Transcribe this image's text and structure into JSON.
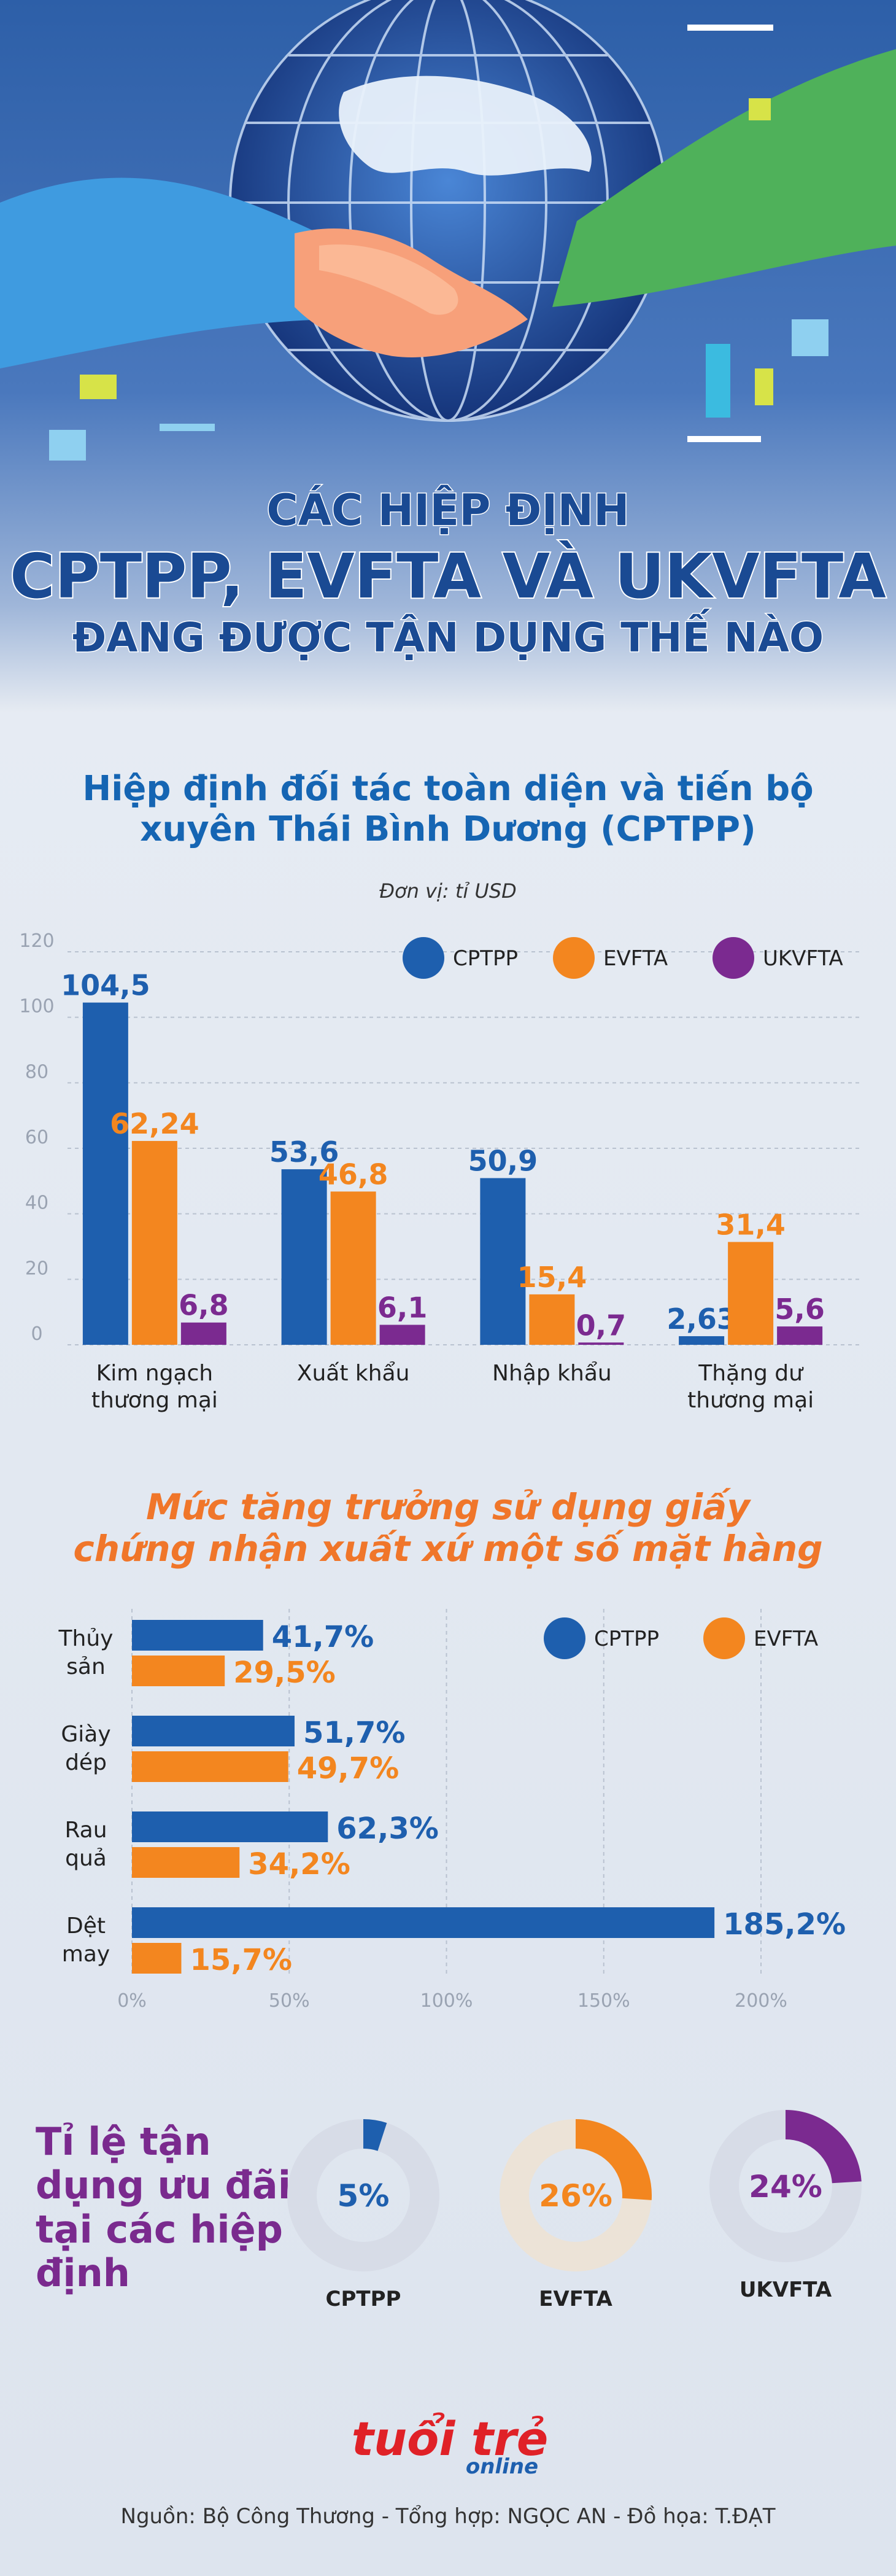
{
  "header": {
    "title_line1": "CÁC HIỆP ĐỊNH",
    "title_line2": "CPTPP, EVFTA VÀ UKVFTA",
    "title_line3": "ĐANG ĐƯỢC TẬN DỤNG THẾ NÀO"
  },
  "colors": {
    "cptpp": "#1e5fae",
    "evfta": "#f3861f",
    "ukvfta": "#7b2a90",
    "grey_ring": "#d7dce7",
    "beige_ring": "#ece3d7"
  },
  "chart_data": [
    {
      "type": "bar",
      "title_line1": "Hiệp định đối tác toàn diện và tiến bộ",
      "title_line2": "xuyên Thái Bình Dương (CPTPP)",
      "unit": "Đơn vị: tỉ USD",
      "categories": [
        [
          "Kim ngạch",
          "thương mại"
        ],
        [
          "Xuất khẩu"
        ],
        [
          "Nhập khẩu"
        ],
        [
          "Thặng dư",
          "thương mại"
        ]
      ],
      "ylim": [
        0,
        120
      ],
      "yticks": [
        "0",
        "20",
        "40",
        "60",
        "80",
        "100",
        "120"
      ],
      "grid": true,
      "legend_position": "top-right",
      "series": [
        {
          "name": "CPTPP",
          "values": [
            104.5,
            53.6,
            50.9,
            2.63
          ],
          "labels": [
            "104,5",
            "53,6",
            "50,9",
            "2,63"
          ]
        },
        {
          "name": "EVFTA",
          "values": [
            62.24,
            46.8,
            15.4,
            31.4
          ],
          "labels": [
            "62,24",
            "46,8",
            "15,4",
            "31,4"
          ]
        },
        {
          "name": "UKVFTA",
          "values": [
            6.8,
            6.1,
            0.7,
            5.6
          ],
          "labels": [
            "6,8",
            "6,1",
            "0,7",
            "5,6"
          ]
        }
      ]
    },
    {
      "type": "bar",
      "orientation": "horizontal",
      "title_line1": "Mức tăng trưởng sử dụng giấy",
      "title_line2": "chứng nhận xuất xứ một số mặt hàng",
      "categories": [
        [
          "Thủy",
          "sản"
        ],
        [
          "Giày",
          "dép"
        ],
        [
          "Rau",
          "quả"
        ],
        [
          "Dệt",
          "may"
        ]
      ],
      "xlim": [
        0,
        200
      ],
      "xticks": [
        "0%",
        "50%",
        "100%",
        "150%",
        "200%"
      ],
      "grid": true,
      "legend_position": "top-right",
      "series": [
        {
          "name": "CPTPP",
          "values": [
            41.7,
            51.7,
            62.3,
            185.2
          ],
          "labels": [
            "41,7%",
            "51,7%",
            "62,3%",
            "185,2%"
          ]
        },
        {
          "name": "EVFTA",
          "values": [
            29.5,
            49.7,
            34.2,
            15.7
          ],
          "labels": [
            "29,5%",
            "49,7%",
            "34,2%",
            "15,7%"
          ]
        }
      ]
    },
    {
      "type": "pie",
      "title": "Tỉ lệ tận dụng ưu đãi tại các hiệp định",
      "items": [
        {
          "name": "CPTPP",
          "value": 5,
          "label": "5%"
        },
        {
          "name": "EVFTA",
          "value": 26,
          "label": "26%"
        },
        {
          "name": "UKVFTA",
          "value": 24,
          "label": "24%"
        }
      ]
    }
  ],
  "logo": {
    "main": "tuổi trẻ",
    "sub": "online"
  },
  "footer": {
    "source": "Nguồn: Bộ Công Thương - Tổng hợp: NGỌC AN - Đồ họa: T.ĐẠT"
  }
}
